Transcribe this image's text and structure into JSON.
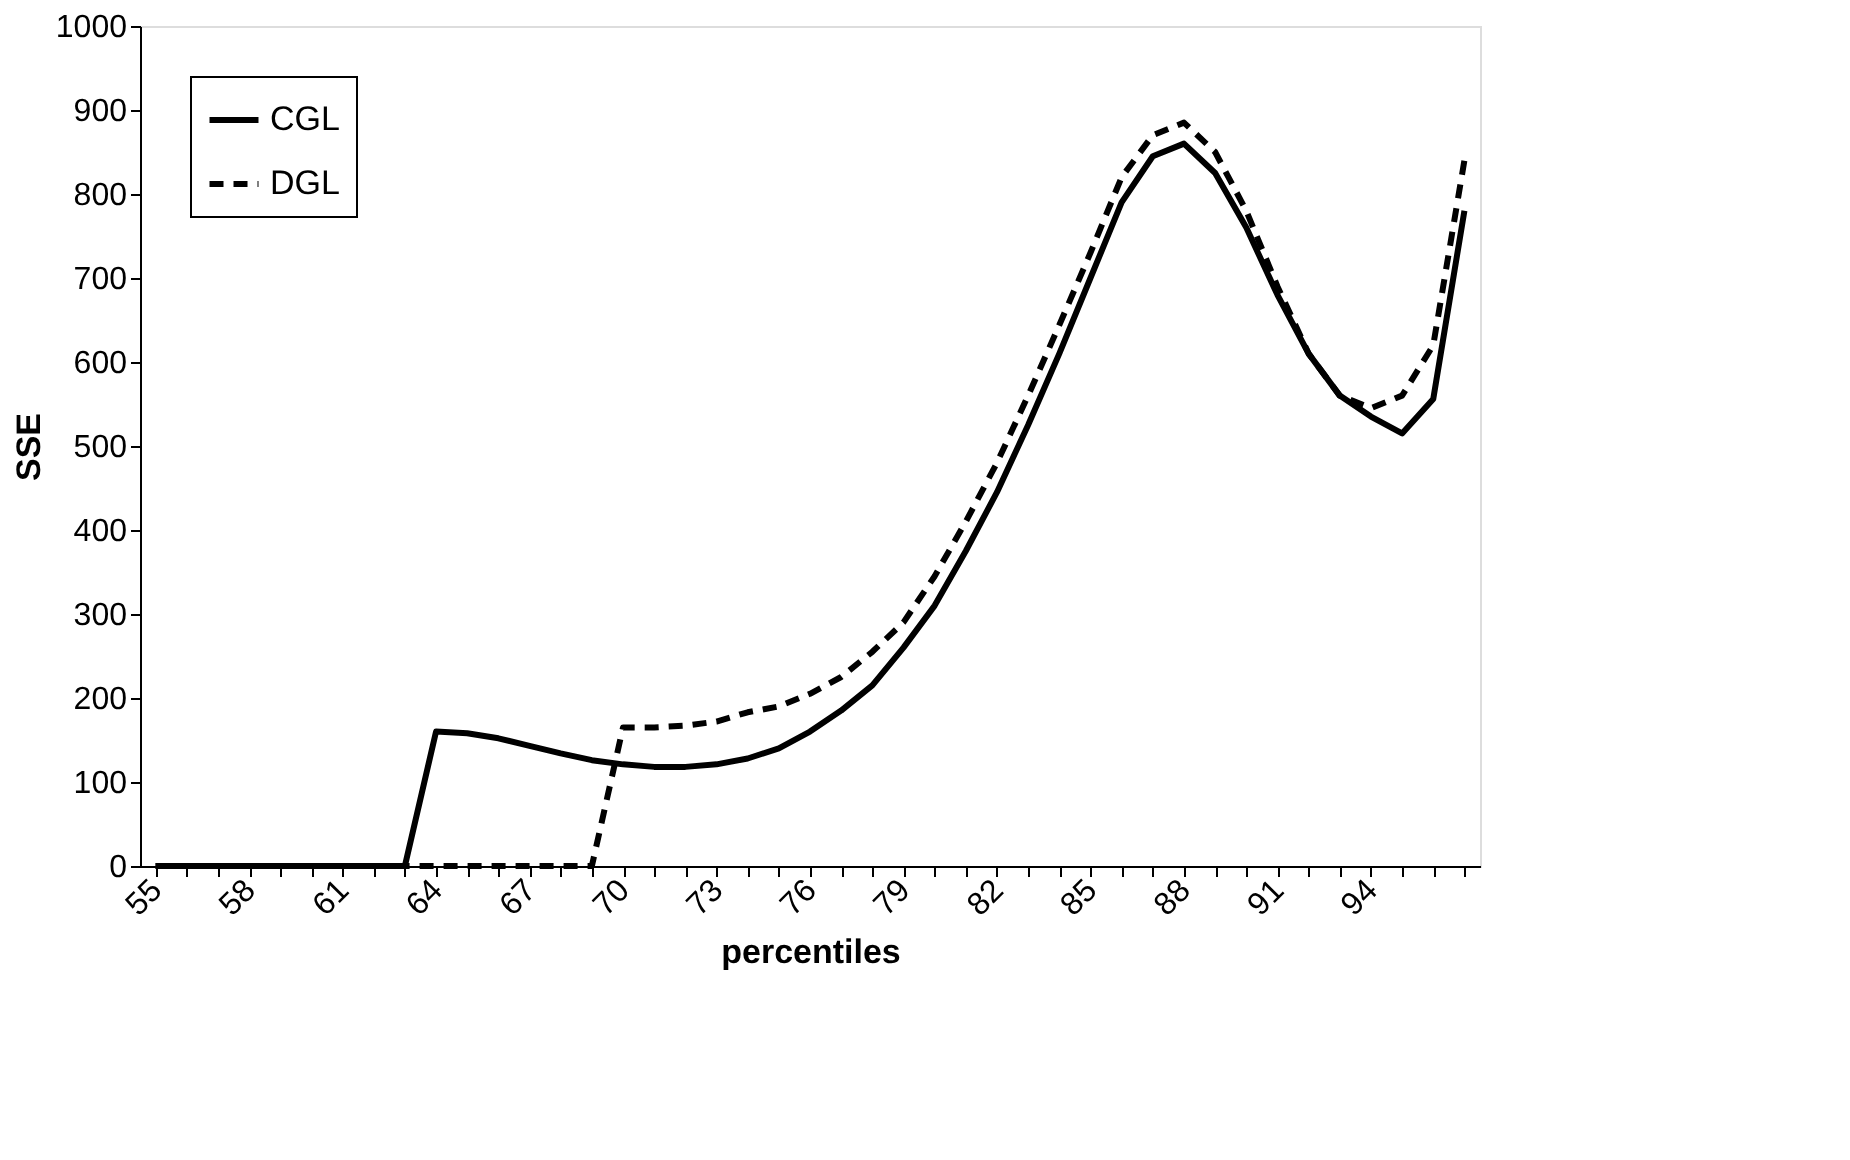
{
  "chart_data": {
    "type": "line",
    "xlabel": "percentiles",
    "ylabel": "SSE",
    "categories": [
      "55",
      null,
      null,
      "58",
      null,
      null,
      "61",
      null,
      null,
      "64",
      null,
      null,
      "67",
      null,
      null,
      "70",
      null,
      null,
      "73",
      null,
      null,
      "76",
      null,
      null,
      "79",
      null,
      null,
      "82",
      null,
      null,
      "85",
      null,
      null,
      "88",
      null,
      null,
      "91",
      null,
      null,
      "94",
      null,
      null,
      null
    ],
    "series": [
      {
        "name": "CGL",
        "color": "#000000",
        "line_style": "solid",
        "values": [
          0,
          0,
          0,
          0,
          0,
          0,
          0,
          0,
          0,
          160,
          158,
          152,
          143,
          134,
          126,
          121,
          118,
          118,
          121,
          128,
          140,
          160,
          185,
          215,
          260,
          310,
          375,
          445,
          525,
          610,
          700,
          790,
          845,
          860,
          825,
          760,
          680,
          610,
          560,
          535,
          515,
          556,
          780
        ]
      },
      {
        "name": "DGL",
        "color": "#000000",
        "line_style": "dashed",
        "values": [
          0,
          0,
          0,
          0,
          0,
          0,
          0,
          0,
          0,
          0,
          0,
          0,
          0,
          0,
          0,
          165,
          165,
          167,
          172,
          183,
          190,
          205,
          225,
          255,
          290,
          345,
          410,
          480,
          560,
          644,
          730,
          820,
          870,
          885,
          850,
          780,
          690,
          610,
          560,
          545,
          560,
          620,
          840
        ]
      }
    ],
    "ylim": [
      0,
      1000
    ],
    "yticks": [
      0,
      100,
      200,
      300,
      400,
      500,
      600,
      700,
      800,
      900,
      1000
    ],
    "grid": false,
    "legend": "top left",
    "marker": "none"
  }
}
